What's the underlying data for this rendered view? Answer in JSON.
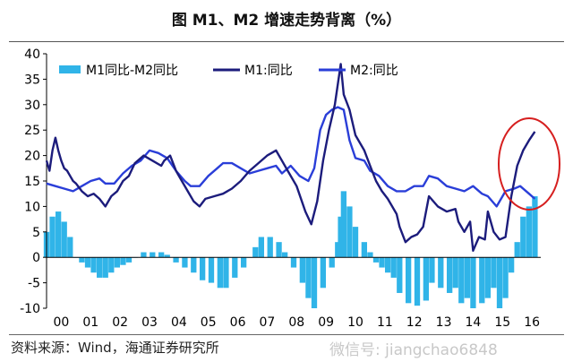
{
  "title": "图    M1、M2 增速走势背离（%）",
  "source": "资料来源：Wind，海通证券研究所",
  "watermark": "微信号: jiangchao6848",
  "colors": {
    "bar": "#30b4e8",
    "m1": "#1c1c7c",
    "m2": "#2a3ed8",
    "circle": "#d61f1f"
  },
  "chart_data": {
    "type": "bar+line",
    "title": "M1、M2 增速走势背离（%）",
    "xlabel": "",
    "ylabel": "",
    "ylim": [
      -10,
      40
    ],
    "yticks": [
      -10,
      -5,
      0,
      5,
      10,
      15,
      20,
      25,
      30,
      35,
      40
    ],
    "xlim": [
      2000,
      2016.8
    ],
    "xticks": [
      "00",
      "01",
      "02",
      "03",
      "04",
      "05",
      "06",
      "07",
      "08",
      "09",
      "10",
      "11",
      "12",
      "13",
      "14",
      "15",
      "16"
    ],
    "legend": [
      "M1同比-M2同比",
      "M1:同比",
      "M2:同比"
    ],
    "legend_position": "top",
    "annotation": "red ellipse around 2016 divergence",
    "series": [
      {
        "name": "M1:同比",
        "type": "line",
        "points": [
          [
            2000.0,
            19
          ],
          [
            2000.1,
            17
          ],
          [
            2000.2,
            21
          ],
          [
            2000.3,
            23.5
          ],
          [
            2000.4,
            21
          ],
          [
            2000.5,
            19
          ],
          [
            2000.6,
            17.5
          ],
          [
            2000.7,
            17
          ],
          [
            2000.8,
            16
          ],
          [
            2000.9,
            15
          ],
          [
            2001.0,
            14.5
          ],
          [
            2001.2,
            13
          ],
          [
            2001.4,
            12
          ],
          [
            2001.6,
            12.5
          ],
          [
            2001.8,
            11.5
          ],
          [
            2002.0,
            10
          ],
          [
            2002.2,
            12
          ],
          [
            2002.4,
            13
          ],
          [
            2002.6,
            15
          ],
          [
            2002.8,
            16
          ],
          [
            2003.0,
            18.5
          ],
          [
            2003.3,
            20
          ],
          [
            2003.6,
            19
          ],
          [
            2003.9,
            18
          ],
          [
            2004.0,
            19
          ],
          [
            2004.2,
            20
          ],
          [
            2004.4,
            17
          ],
          [
            2004.6,
            15
          ],
          [
            2004.8,
            13
          ],
          [
            2005.0,
            11
          ],
          [
            2005.2,
            10
          ],
          [
            2005.4,
            11.5
          ],
          [
            2005.7,
            12
          ],
          [
            2006.0,
            12.5
          ],
          [
            2006.3,
            13.5
          ],
          [
            2006.6,
            15
          ],
          [
            2006.9,
            17
          ],
          [
            2007.2,
            18.5
          ],
          [
            2007.5,
            20
          ],
          [
            2007.8,
            21
          ],
          [
            2008.0,
            19
          ],
          [
            2008.2,
            17
          ],
          [
            2008.5,
            14
          ],
          [
            2008.8,
            9
          ],
          [
            2009.0,
            6.5
          ],
          [
            2009.2,
            11
          ],
          [
            2009.4,
            19
          ],
          [
            2009.6,
            25
          ],
          [
            2009.8,
            30
          ],
          [
            2010.0,
            38
          ],
          [
            2010.1,
            32
          ],
          [
            2010.3,
            29
          ],
          [
            2010.5,
            24
          ],
          [
            2010.8,
            21
          ],
          [
            2011.0,
            18
          ],
          [
            2011.2,
            15
          ],
          [
            2011.4,
            13
          ],
          [
            2011.6,
            11.5
          ],
          [
            2011.9,
            8.5
          ],
          [
            2012.0,
            6
          ],
          [
            2012.2,
            3
          ],
          [
            2012.4,
            4
          ],
          [
            2012.6,
            4.5
          ],
          [
            2012.8,
            6
          ],
          [
            2013.0,
            12
          ],
          [
            2013.3,
            10
          ],
          [
            2013.6,
            9
          ],
          [
            2013.9,
            9.5
          ],
          [
            2014.0,
            7
          ],
          [
            2014.2,
            5
          ],
          [
            2014.4,
            7
          ],
          [
            2014.5,
            1.3
          ],
          [
            2014.7,
            4
          ],
          [
            2014.9,
            3.5
          ],
          [
            2015.0,
            9
          ],
          [
            2015.2,
            5
          ],
          [
            2015.4,
            3.5
          ],
          [
            2015.6,
            4
          ],
          [
            2015.8,
            12
          ],
          [
            2016.0,
            18
          ],
          [
            2016.2,
            21
          ],
          [
            2016.4,
            23
          ],
          [
            2016.6,
            24.7
          ]
        ]
      },
      {
        "name": "M2:同比",
        "type": "line",
        "points": [
          [
            2000.0,
            14.5
          ],
          [
            2000.3,
            14
          ],
          [
            2000.6,
            13.5
          ],
          [
            2000.9,
            13
          ],
          [
            2001.2,
            14
          ],
          [
            2001.5,
            15
          ],
          [
            2001.8,
            15.5
          ],
          [
            2002.0,
            14.5
          ],
          [
            2002.3,
            14.5
          ],
          [
            2002.6,
            16.5
          ],
          [
            2002.9,
            18
          ],
          [
            2003.2,
            19
          ],
          [
            2003.5,
            21
          ],
          [
            2003.8,
            20.5
          ],
          [
            2004.1,
            19.5
          ],
          [
            2004.4,
            17
          ],
          [
            2004.7,
            15
          ],
          [
            2004.9,
            14
          ],
          [
            2005.2,
            14
          ],
          [
            2005.5,
            16
          ],
          [
            2005.8,
            17.5
          ],
          [
            2006.0,
            18.5
          ],
          [
            2006.3,
            18.5
          ],
          [
            2006.6,
            17.5
          ],
          [
            2006.9,
            16.5
          ],
          [
            2007.2,
            17
          ],
          [
            2007.5,
            17.5
          ],
          [
            2007.8,
            18
          ],
          [
            2008.0,
            16.5
          ],
          [
            2008.3,
            18
          ],
          [
            2008.6,
            16
          ],
          [
            2008.9,
            15
          ],
          [
            2009.1,
            17.5
          ],
          [
            2009.3,
            25
          ],
          [
            2009.5,
            28
          ],
          [
            2009.7,
            29
          ],
          [
            2009.9,
            29.5
          ],
          [
            2010.1,
            29
          ],
          [
            2010.3,
            23
          ],
          [
            2010.5,
            19.5
          ],
          [
            2010.8,
            19
          ],
          [
            2011.0,
            17
          ],
          [
            2011.3,
            16
          ],
          [
            2011.6,
            14
          ],
          [
            2011.9,
            13
          ],
          [
            2012.2,
            13
          ],
          [
            2012.5,
            14
          ],
          [
            2012.8,
            14
          ],
          [
            2013.0,
            16
          ],
          [
            2013.3,
            15.5
          ],
          [
            2013.6,
            14
          ],
          [
            2013.9,
            13.5
          ],
          [
            2014.2,
            13
          ],
          [
            2014.5,
            14
          ],
          [
            2014.8,
            12.5
          ],
          [
            2015.0,
            12
          ],
          [
            2015.3,
            10
          ],
          [
            2015.6,
            13
          ],
          [
            2015.9,
            13.5
          ],
          [
            2016.1,
            14
          ],
          [
            2016.4,
            12.5
          ],
          [
            2016.6,
            11.5
          ]
        ]
      },
      {
        "name": "M1同比-M2同比",
        "type": "bar",
        "points": [
          [
            2000.0,
            5
          ],
          [
            2000.2,
            8
          ],
          [
            2000.4,
            9
          ],
          [
            2000.6,
            7
          ],
          [
            2000.8,
            4
          ],
          [
            2001.0,
            0
          ],
          [
            2001.2,
            -1
          ],
          [
            2001.4,
            -2
          ],
          [
            2001.6,
            -3
          ],
          [
            2001.8,
            -4
          ],
          [
            2002.0,
            -4
          ],
          [
            2002.2,
            -3
          ],
          [
            2002.4,
            -2
          ],
          [
            2002.6,
            -1.5
          ],
          [
            2002.8,
            -1
          ],
          [
            2003.0,
            0
          ],
          [
            2003.3,
            1
          ],
          [
            2003.6,
            1
          ],
          [
            2003.9,
            1
          ],
          [
            2004.1,
            0.5
          ],
          [
            2004.4,
            -1
          ],
          [
            2004.7,
            -2
          ],
          [
            2005.0,
            -3
          ],
          [
            2005.3,
            -4.5
          ],
          [
            2005.6,
            -5
          ],
          [
            2005.9,
            -6
          ],
          [
            2006.1,
            -6
          ],
          [
            2006.4,
            -4
          ],
          [
            2006.7,
            -2
          ],
          [
            2006.9,
            0
          ],
          [
            2007.1,
            2
          ],
          [
            2007.3,
            4
          ],
          [
            2007.6,
            4
          ],
          [
            2007.9,
            3
          ],
          [
            2008.1,
            1
          ],
          [
            2008.4,
            -2
          ],
          [
            2008.7,
            -5
          ],
          [
            2008.9,
            -8
          ],
          [
            2009.1,
            -10
          ],
          [
            2009.4,
            -6
          ],
          [
            2009.7,
            -2
          ],
          [
            2009.9,
            3
          ],
          [
            2010.0,
            8
          ],
          [
            2010.1,
            13
          ],
          [
            2010.3,
            10
          ],
          [
            2010.5,
            6
          ],
          [
            2010.8,
            3
          ],
          [
            2011.0,
            1
          ],
          [
            2011.2,
            -1
          ],
          [
            2011.4,
            -2
          ],
          [
            2011.6,
            -3
          ],
          [
            2011.8,
            -4
          ],
          [
            2012.0,
            -7
          ],
          [
            2012.3,
            -9
          ],
          [
            2012.6,
            -9.5
          ],
          [
            2012.9,
            -8.5
          ],
          [
            2013.1,
            -5
          ],
          [
            2013.4,
            -6
          ],
          [
            2013.7,
            -7
          ],
          [
            2013.9,
            -6
          ],
          [
            2014.1,
            -9
          ],
          [
            2014.3,
            -8
          ],
          [
            2014.5,
            -10
          ],
          [
            2014.8,
            -9
          ],
          [
            2015.0,
            -8
          ],
          [
            2015.2,
            -6
          ],
          [
            2015.4,
            -10
          ],
          [
            2015.6,
            -8
          ],
          [
            2015.8,
            -3
          ],
          [
            2016.0,
            3
          ],
          [
            2016.2,
            8
          ],
          [
            2016.4,
            10
          ],
          [
            2016.6,
            12
          ]
        ]
      }
    ]
  }
}
